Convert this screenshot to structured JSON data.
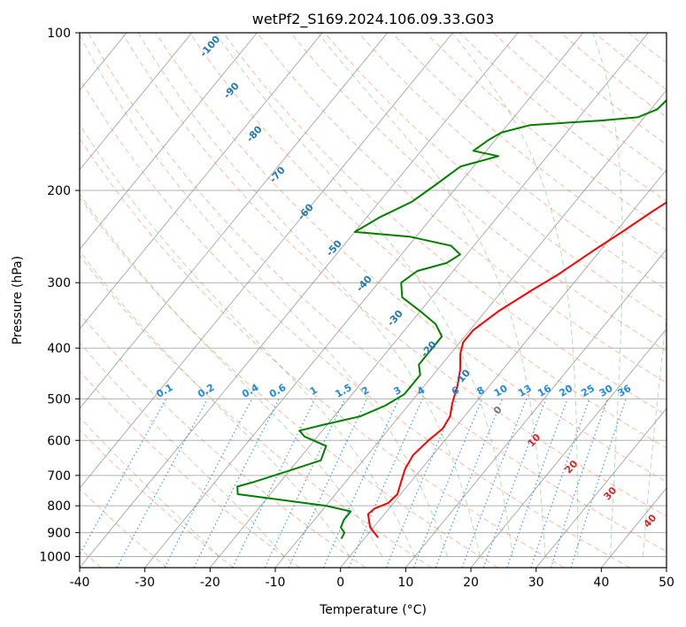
{
  "chart_data": {
    "type": "skewt",
    "title": "wetPf2_S169.2024.106.09.33.G03",
    "xlabel": "Temperature (°C)",
    "ylabel": "Pressure (hPa)",
    "xlim": [
      -40,
      50
    ],
    "ylim_hpa": [
      1050,
      100
    ],
    "x_ticks": [
      -40,
      -30,
      -20,
      -10,
      0,
      10,
      20,
      30,
      40,
      50
    ],
    "y_ticks": [
      100,
      200,
      300,
      400,
      500,
      600,
      700,
      800,
      900,
      1000
    ],
    "grid": true,
    "colors": {
      "temperature": "#ff0000",
      "dewpoint": "#008000",
      "dry_adiabat": "#ff7f50",
      "moist_adiabat": "#2ca02c",
      "mixing_ratio": "#1e88e5",
      "isotherm": "#888888",
      "dry_label_cold": "#1f77b4",
      "dry_label_warm": "#d62728"
    },
    "temperature_profile": {
      "name": "Temperature",
      "points": [
        [
          2.0,
          920
        ],
        [
          -0.5,
          880
        ],
        [
          -2.5,
          830
        ],
        [
          -2.2,
          810
        ],
        [
          -0.8,
          790
        ],
        [
          -0.5,
          760
        ],
        [
          -1.5,
          720
        ],
        [
          -2.5,
          680
        ],
        [
          -3.0,
          640
        ],
        [
          -2.5,
          600
        ],
        [
          -1.8,
          570
        ],
        [
          -2.2,
          540
        ],
        [
          -3.5,
          510
        ],
        [
          -5.0,
          470
        ],
        [
          -6.5,
          440
        ],
        [
          -8.5,
          410
        ],
        [
          -9.5,
          390
        ],
        [
          -9.5,
          370
        ],
        [
          -8.0,
          340
        ],
        [
          -5.5,
          310
        ],
        [
          -3.5,
          290
        ],
        [
          -1.0,
          260
        ],
        [
          1.0,
          240
        ],
        [
          3.0,
          220
        ],
        [
          5.5,
          200
        ],
        [
          8.0,
          185
        ],
        [
          11.0,
          170
        ],
        [
          13.5,
          160
        ],
        [
          14.5,
          150
        ],
        [
          14.5,
          140
        ],
        [
          15.0,
          130
        ],
        [
          16.5,
          120
        ],
        [
          18.5,
          110
        ],
        [
          21.0,
          100
        ]
      ]
    },
    "dewpoint_profile": {
      "name": "Dewpoint",
      "points": [
        [
          -3.5,
          925
        ],
        [
          -3.8,
          900
        ],
        [
          -5.0,
          880
        ],
        [
          -5.5,
          850
        ],
        [
          -5.5,
          820
        ],
        [
          -10.0,
          800
        ],
        [
          -25.0,
          760
        ],
        [
          -26.0,
          735
        ],
        [
          -24.0,
          720
        ],
        [
          -20.0,
          685
        ],
        [
          -16.5,
          655
        ],
        [
          -17.5,
          615
        ],
        [
          -22.0,
          590
        ],
        [
          -23.5,
          575
        ],
        [
          -20.5,
          560
        ],
        [
          -16.0,
          540
        ],
        [
          -13.5,
          515
        ],
        [
          -12.0,
          490
        ],
        [
          -12.0,
          450
        ],
        [
          -13.5,
          430
        ],
        [
          -13.5,
          400
        ],
        [
          -13.5,
          380
        ],
        [
          -16.0,
          360
        ],
        [
          -20.0,
          340
        ],
        [
          -24.5,
          320
        ],
        [
          -26.5,
          300
        ],
        [
          -25.5,
          285
        ],
        [
          -22.0,
          275
        ],
        [
          -21.0,
          265
        ],
        [
          -23.5,
          255
        ],
        [
          -31.0,
          245
        ],
        [
          -40.0,
          240
        ],
        [
          -38.0,
          225
        ],
        [
          -35.0,
          210
        ],
        [
          -33.5,
          195
        ],
        [
          -32.0,
          180
        ],
        [
          -27.5,
          172
        ],
        [
          -32.0,
          168
        ],
        [
          -31.0,
          160
        ],
        [
          -30.0,
          155
        ],
        [
          -26.5,
          150
        ],
        [
          -16.0,
          147
        ],
        [
          -11.0,
          145
        ],
        [
          -9.0,
          140
        ],
        [
          -8.5,
          130
        ],
        [
          -6.0,
          120
        ],
        [
          -3.5,
          112
        ],
        [
          -1.0,
          104
        ],
        [
          0.5,
          100
        ]
      ]
    },
    "dry_adiabat_labels": [
      "-100",
      "-90",
      "-80",
      "-70",
      "-60",
      "-50",
      "-40",
      "-30",
      "-20",
      "-10",
      "0",
      "10",
      "20",
      "30",
      "40"
    ],
    "mixing_ratio_labels": [
      "0.1",
      "0.2",
      "0.4",
      "0.6",
      "1",
      "1.5",
      "2",
      "3",
      "4",
      "6",
      "8",
      "10",
      "13",
      "16",
      "20",
      "25",
      "30",
      "36"
    ],
    "mixing_ratio_values": [
      0.1,
      0.2,
      0.4,
      0.6,
      1,
      1.5,
      2,
      3,
      4,
      6,
      8,
      10,
      13,
      16,
      20,
      25,
      30,
      36
    ]
  }
}
